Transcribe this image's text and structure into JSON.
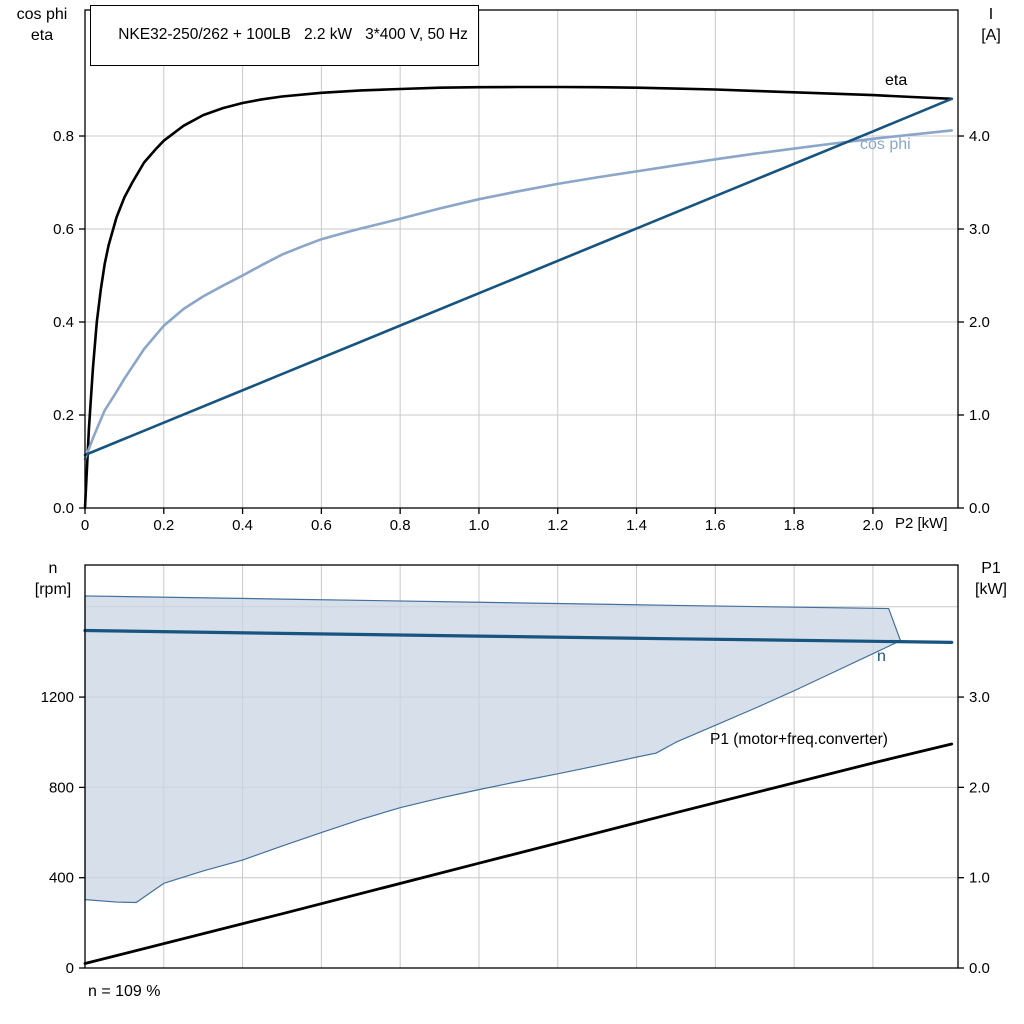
{
  "chart_data": [
    {
      "type": "line",
      "title": "NKE32-250/262 + 100LB   2.2 kW   3*400 V, 50 Hz",
      "x_axis": {
        "label": "P2 [kW]",
        "range": [
          0,
          2.216
        ],
        "tick_values": [
          0,
          0.2,
          0.4,
          0.6,
          0.8,
          1.0,
          1.2,
          1.4,
          1.6,
          1.8,
          2.0
        ],
        "tick_labels": [
          "0",
          "0.2",
          "0.4",
          "0.6",
          "0.8",
          "1.0",
          "1.2",
          "1.4",
          "1.6",
          "1.8",
          "2.0"
        ],
        "grid_values": [
          0.2,
          0.4,
          0.6,
          0.8,
          1.0,
          1.2,
          1.4,
          1.6,
          1.8,
          2.0
        ]
      },
      "y_left": {
        "label_lines": [
          "cos phi",
          "eta"
        ],
        "range": [
          0,
          1.071
        ],
        "tick_values": [
          0,
          0.2,
          0.4,
          0.6,
          0.8
        ],
        "tick_labels": [
          "0.0",
          "0.2",
          "0.4",
          "0.6",
          "0.8"
        ],
        "grid_values": [
          0.2,
          0.4,
          0.6,
          0.8
        ]
      },
      "y_right": {
        "label_lines": [
          "I",
          "[A]"
        ],
        "range": [
          0,
          5.355
        ],
        "tick_values": [
          0,
          1,
          2,
          3,
          4
        ],
        "tick_labels": [
          "0.0",
          "1.0",
          "2.0",
          "3.0",
          "4.0"
        ]
      },
      "series": [
        {
          "name": "eta",
          "axis": "left",
          "color": "#000000",
          "width": 2.6,
          "points": [
            [
              0,
              0
            ],
            [
              0.01,
              0.17
            ],
            [
              0.02,
              0.3
            ],
            [
              0.03,
              0.4
            ],
            [
              0.04,
              0.47
            ],
            [
              0.05,
              0.525
            ],
            [
              0.06,
              0.565
            ],
            [
              0.08,
              0.625
            ],
            [
              0.1,
              0.668
            ],
            [
              0.12,
              0.7
            ],
            [
              0.15,
              0.743
            ],
            [
              0.18,
              0.772
            ],
            [
              0.2,
              0.79
            ],
            [
              0.25,
              0.822
            ],
            [
              0.3,
              0.845
            ],
            [
              0.35,
              0.86
            ],
            [
              0.4,
              0.871
            ],
            [
              0.45,
              0.879
            ],
            [
              0.5,
              0.885
            ],
            [
              0.6,
              0.893
            ],
            [
              0.7,
              0.898
            ],
            [
              0.8,
              0.901
            ],
            [
              0.9,
              0.904
            ],
            [
              1.0,
              0.905
            ],
            [
              1.1,
              0.9055
            ],
            [
              1.2,
              0.9055
            ],
            [
              1.3,
              0.905
            ],
            [
              1.4,
              0.904
            ],
            [
              1.5,
              0.902
            ],
            [
              1.6,
              0.9
            ],
            [
              1.7,
              0.897
            ],
            [
              1.8,
              0.894
            ],
            [
              1.9,
              0.891
            ],
            [
              2.0,
              0.888
            ],
            [
              2.1,
              0.884
            ],
            [
              2.2,
              0.88
            ]
          ]
        },
        {
          "name": "cos phi",
          "axis": "left",
          "color": "#8ba6c9",
          "width": 2.6,
          "points": [
            [
              0,
              0.105
            ],
            [
              0.02,
              0.15
            ],
            [
              0.05,
              0.21
            ],
            [
              0.08,
              0.25
            ],
            [
              0.1,
              0.278
            ],
            [
              0.15,
              0.342
            ],
            [
              0.2,
              0.392
            ],
            [
              0.25,
              0.428
            ],
            [
              0.3,
              0.455
            ],
            [
              0.35,
              0.478
            ],
            [
              0.4,
              0.5
            ],
            [
              0.45,
              0.523
            ],
            [
              0.5,
              0.545
            ],
            [
              0.55,
              0.562
            ],
            [
              0.6,
              0.578
            ],
            [
              0.65,
              0.59
            ],
            [
              0.7,
              0.601
            ],
            [
              0.8,
              0.622
            ],
            [
              0.9,
              0.644
            ],
            [
              1.0,
              0.664
            ],
            [
              1.1,
              0.681
            ],
            [
              1.2,
              0.697
            ],
            [
              1.3,
              0.711
            ],
            [
              1.4,
              0.724
            ],
            [
              1.5,
              0.737
            ],
            [
              1.6,
              0.75
            ],
            [
              1.7,
              0.762
            ],
            [
              1.8,
              0.773
            ],
            [
              1.9,
              0.784
            ],
            [
              2.0,
              0.794
            ],
            [
              2.1,
              0.803
            ],
            [
              2.2,
              0.812
            ]
          ]
        },
        {
          "name": "I",
          "axis": "right",
          "color": "#17547f",
          "width": 2.6,
          "points": [
            [
              0,
              0.57
            ],
            [
              0.5,
              1.44
            ],
            [
              1.0,
              2.31
            ],
            [
              1.5,
              3.18
            ],
            [
              2.0,
              4.05
            ],
            [
              2.2,
              4.4
            ]
          ]
        }
      ]
    },
    {
      "type": "line",
      "x_axis": {
        "range": [
          0,
          2.216
        ],
        "grid_values": [
          0.2,
          0.4,
          0.6,
          0.8,
          1.0,
          1.2,
          1.4,
          1.6,
          1.8,
          2.0
        ]
      },
      "y_left": {
        "label_lines": [
          "n",
          "[rpm]"
        ],
        "range": [
          0,
          1785
        ],
        "tick_values": [
          0,
          400,
          800,
          1200
        ],
        "tick_labels": [
          "0",
          "400",
          "800",
          "1200"
        ],
        "grid_values": [
          400,
          800,
          1200,
          1600
        ]
      },
      "y_right": {
        "label_lines": [
          "P1",
          "[kW]"
        ],
        "range": [
          0,
          4.462
        ],
        "tick_values": [
          0,
          1,
          2,
          3
        ],
        "tick_labels": [
          "0.0",
          "1.0",
          "2.0",
          "3.0"
        ]
      },
      "band": {
        "axis": "left",
        "fill": "#c9d6e3",
        "opacity": 0.75,
        "stroke": "#44709d",
        "upper": [
          [
            0,
            1648
          ],
          [
            0.5,
            1634
          ],
          [
            1.0,
            1620
          ],
          [
            1.5,
            1606
          ],
          [
            2.04,
            1592
          ]
        ],
        "lower": [
          [
            0,
            303
          ],
          [
            0.08,
            292
          ],
          [
            0.13,
            290
          ],
          [
            0.2,
            375
          ],
          [
            0.3,
            430
          ],
          [
            0.4,
            478
          ],
          [
            0.5,
            540
          ],
          [
            0.6,
            600
          ],
          [
            0.7,
            658
          ],
          [
            0.8,
            710
          ],
          [
            0.9,
            752
          ],
          [
            1.0,
            790
          ],
          [
            1.1,
            826
          ],
          [
            1.2,
            860
          ],
          [
            1.3,
            896
          ],
          [
            1.4,
            934
          ],
          [
            1.45,
            952
          ],
          [
            1.5,
            1000
          ],
          [
            1.6,
            1075
          ],
          [
            1.7,
            1150
          ],
          [
            1.8,
            1228
          ],
          [
            1.9,
            1310
          ],
          [
            2.0,
            1392
          ],
          [
            2.07,
            1450
          ]
        ]
      },
      "series": [
        {
          "name": "n",
          "axis": "left",
          "color": "#17547f",
          "width": 3.2,
          "points": [
            [
              0,
              1495
            ],
            [
              0.5,
              1482
            ],
            [
              1.0,
              1470
            ],
            [
              1.5,
              1458
            ],
            [
              2.0,
              1447
            ],
            [
              2.2,
              1442
            ]
          ]
        },
        {
          "name": "P1 (motor+freq.converter)",
          "axis": "right",
          "color": "#000000",
          "width": 2.8,
          "points": [
            [
              0,
              0.05
            ],
            [
              0.5,
              0.6
            ],
            [
              1.0,
              1.16
            ],
            [
              1.5,
              1.72
            ],
            [
              2.0,
              2.27
            ],
            [
              2.2,
              2.48
            ]
          ]
        }
      ],
      "annotation": "n = 109 %"
    }
  ]
}
